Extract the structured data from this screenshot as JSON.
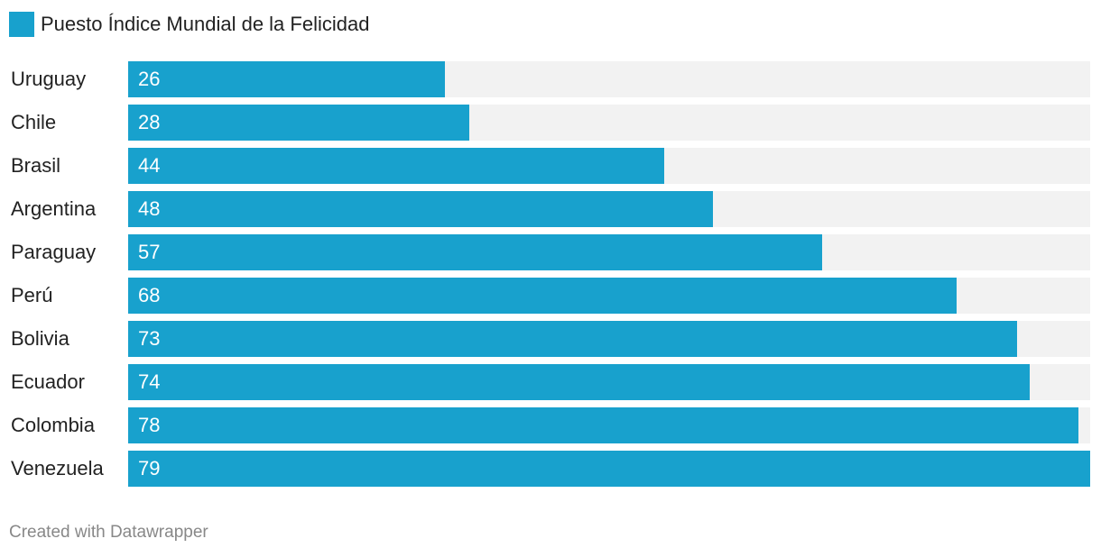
{
  "chart_data": {
    "type": "bar",
    "orientation": "horizontal",
    "categories": [
      "Uruguay",
      "Chile",
      "Brasil",
      "Argentina",
      "Paraguay",
      "Perú",
      "Bolivia",
      "Ecuador",
      "Colombia",
      "Venezuela"
    ],
    "series": [
      {
        "name": "Puesto Índice Mundial de la Felicidad",
        "values": [
          26,
          28,
          44,
          48,
          57,
          68,
          73,
          74,
          78,
          79
        ],
        "color": "#18a1cd"
      }
    ],
    "xlim": [
      0,
      79
    ],
    "grid": false,
    "legend": "top-left",
    "track_color": "#f2f2f2"
  },
  "footer": {
    "credit": "Created with Datawrapper"
  }
}
